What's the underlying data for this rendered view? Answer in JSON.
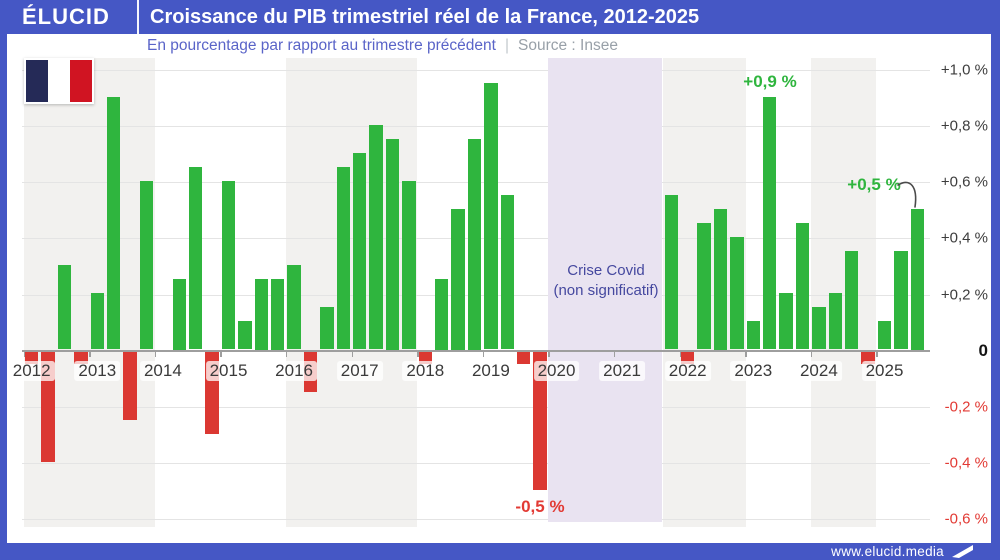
{
  "header": {
    "brand": "ÉLUCID",
    "title": "Croissance du PIB trimestriel réel de la France, 2012-2025"
  },
  "subtitle": {
    "text": "En pourcentage par rapport au trimestre précédent",
    "separator": "|",
    "source": "Source : Insee"
  },
  "footer": {
    "url": "www.elucid.media"
  },
  "colors": {
    "header_blue": "#4557c5",
    "positive_green": "#2fb53e",
    "negative_red": "#db3832",
    "stripe_gray": "#f2f1ef",
    "covid_band": "#e9e3f1",
    "covid_text": "#45489f",
    "subtitle_blue": "#5a64c8",
    "source_gray": "#98a0a8",
    "neg_label_red": "#e23a34",
    "pos_label_gray": "#3d3d3d",
    "axis_gray": "#9e9e9e",
    "gridline_gray": "#e4e4e4",
    "flag_navy": "#252a57",
    "flag_red": "#d01422"
  },
  "chart_data": {
    "type": "bar",
    "title": "Croissance du PIB trimestriel réel de la France, 2012-2025",
    "subtitle": "En pourcentage par rapport au trimestre précédent",
    "source": "Insee",
    "unit": "%",
    "x_years": [
      "2012",
      "2013",
      "2014",
      "2015",
      "2016",
      "2017",
      "2018",
      "2019",
      "2020",
      "2021",
      "2022",
      "2023",
      "2024",
      "2025"
    ],
    "y_axis": {
      "min": -0.6,
      "max": 1.0,
      "tick_step": 0.2,
      "grid": true,
      "ticks": [
        {
          "v": 1.0,
          "label": "+1,0 %"
        },
        {
          "v": 0.8,
          "label": "+0,8 %"
        },
        {
          "v": 0.6,
          "label": "+0,6 %"
        },
        {
          "v": 0.4,
          "label": "+0,4 %"
        },
        {
          "v": 0.2,
          "label": "+0,2 %"
        },
        {
          "v": 0.0,
          "label": "0"
        },
        {
          "v": -0.2,
          "label": "-0,2 %"
        },
        {
          "v": -0.4,
          "label": "-0,4 %"
        },
        {
          "v": -0.6,
          "label": "-0,6 %"
        }
      ]
    },
    "series": [
      {
        "year": "2012",
        "values": [
          -0.05,
          -0.4,
          0.3,
          -0.05
        ]
      },
      {
        "year": "2013",
        "values": [
          0.2,
          0.9,
          -0.25,
          0.6
        ]
      },
      {
        "year": "2014",
        "values": [
          0.0,
          0.25,
          0.65,
          -0.3
        ]
      },
      {
        "year": "2015",
        "values": [
          0.6,
          0.1,
          0.25,
          0.25
        ]
      },
      {
        "year": "2016",
        "values": [
          0.3,
          -0.15,
          0.15,
          0.65
        ]
      },
      {
        "year": "2017",
        "values": [
          0.7,
          0.8,
          0.75,
          0.6
        ]
      },
      {
        "year": "2018",
        "values": [
          -0.05,
          0.25,
          0.5,
          0.75
        ]
      },
      {
        "year": "2019",
        "values": [
          0.95,
          0.55,
          -0.05,
          -0.5
        ]
      },
      {
        "year": "2020",
        "values": [
          null,
          null,
          null,
          null
        ]
      },
      {
        "year": "2021",
        "values": [
          null,
          null,
          null,
          0.55
        ]
      },
      {
        "year": "2022",
        "values": [
          -0.05,
          0.45,
          0.5,
          0.4
        ]
      },
      {
        "year": "2023",
        "values": [
          0.1,
          0.9,
          0.2,
          0.45
        ]
      },
      {
        "year": "2024",
        "values": [
          0.15,
          0.2,
          0.35,
          -0.05
        ]
      },
      {
        "year": "2025",
        "values": [
          0.1,
          0.35,
          0.5,
          null
        ]
      }
    ],
    "masked_region": {
      "label_line1": "Crise Covid",
      "label_line2": "(non significatif)",
      "from": "2020-T1",
      "to": "2021-T3"
    },
    "annotations": [
      {
        "text": "+0,9 %",
        "year": "2023",
        "quarter": "T2",
        "value": 0.9
      },
      {
        "text": "+0,5 %",
        "year": "2025",
        "quarter": "T3",
        "value": 0.5
      },
      {
        "text": "-0,5 %",
        "year": "2019",
        "quarter": "T4",
        "value": -0.5
      }
    ]
  }
}
